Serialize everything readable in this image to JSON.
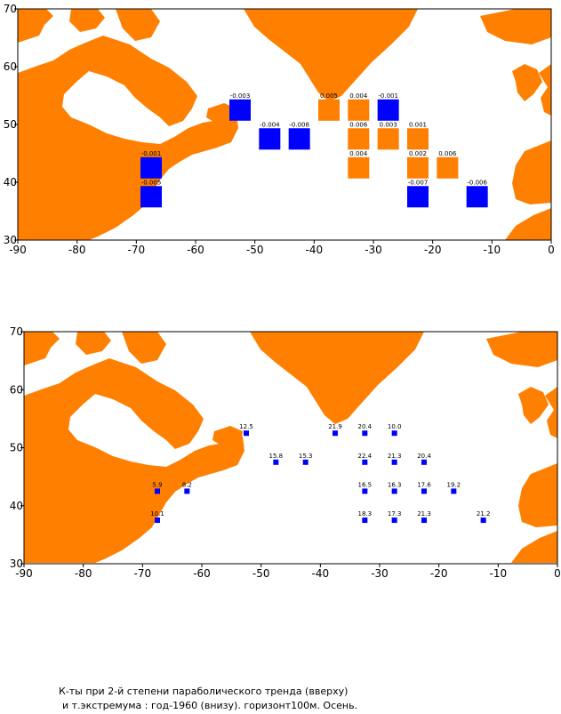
{
  "colors": {
    "land": "#ff7f00",
    "sea": "#ffffff",
    "negative": "#0000ff",
    "positive": "#ff7f00",
    "station": "#0000ff"
  },
  "caption": {
    "line1": "К-ты при 2-й степени параболического тренда (вверху)",
    "line2": "и т.экстремума : год-1960 (внизу).  горизонт100м. Осень."
  },
  "chart_data": [
    {
      "type": "map-grid",
      "xlim": [
        -90,
        0
      ],
      "ylim": [
        30,
        70
      ],
      "x_ticks": [
        "-90",
        "-80",
        "-70",
        "-60",
        "-50",
        "-40",
        "-30",
        "-20",
        "-10",
        "0"
      ],
      "y_ticks": [
        "70",
        "60",
        "50",
        "40",
        "30"
      ],
      "cells": [
        {
          "lon": -52.5,
          "lat": 52.5,
          "value": -0.003,
          "label": "-0.003"
        },
        {
          "lon": -37.5,
          "lat": 52.5,
          "value": 0.005,
          "label": "0.005"
        },
        {
          "lon": -32.5,
          "lat": 52.5,
          "value": 0.004,
          "label": "0.004"
        },
        {
          "lon": -27.5,
          "lat": 52.5,
          "value": -0.001,
          "label": "-0.001"
        },
        {
          "lon": -47.5,
          "lat": 47.5,
          "value": -0.004,
          "label": "-0.004"
        },
        {
          "lon": -42.5,
          "lat": 47.5,
          "value": -0.008,
          "label": "-0.008"
        },
        {
          "lon": -32.5,
          "lat": 47.5,
          "value": 0.006,
          "label": "0.006"
        },
        {
          "lon": -27.5,
          "lat": 47.5,
          "value": 0.003,
          "label": "0.003"
        },
        {
          "lon": -22.5,
          "lat": 47.5,
          "value": 0.001,
          "label": "0.001"
        },
        {
          "lon": -67.5,
          "lat": 42.5,
          "value": -0.001,
          "label": "-0.001"
        },
        {
          "lon": -32.5,
          "lat": 42.5,
          "value": 0.004,
          "label": "0.004"
        },
        {
          "lon": -22.5,
          "lat": 42.5,
          "value": 0.002,
          "label": "0.002"
        },
        {
          "lon": -17.5,
          "lat": 42.5,
          "value": 0.006,
          "label": "0.006"
        },
        {
          "lon": -67.5,
          "lat": 37.5,
          "value": -0.005,
          "label": "-0.005"
        },
        {
          "lon": -22.5,
          "lat": 37.5,
          "value": -0.007,
          "label": "-0.007"
        },
        {
          "lon": -12.5,
          "lat": 37.5,
          "value": -0.006,
          "label": "-0.006"
        }
      ]
    },
    {
      "type": "map-points",
      "xlim": [
        -90,
        0
      ],
      "ylim": [
        30,
        70
      ],
      "x_ticks": [
        "-90",
        "-80",
        "-70",
        "-60",
        "-50",
        "-40",
        "-30",
        "-20",
        "-10",
        "0"
      ],
      "y_ticks": [
        "70",
        "60",
        "50",
        "40",
        "30"
      ],
      "points": [
        {
          "lon": -52.5,
          "lat": 52.5,
          "label": "12.5"
        },
        {
          "lon": -37.5,
          "lat": 52.5,
          "label": "21.9"
        },
        {
          "lon": -32.5,
          "lat": 52.5,
          "label": "20.4"
        },
        {
          "lon": -27.5,
          "lat": 52.5,
          "label": "10.0"
        },
        {
          "lon": -47.5,
          "lat": 47.5,
          "label": "15.8"
        },
        {
          "lon": -42.5,
          "lat": 47.5,
          "label": "15.3"
        },
        {
          "lon": -32.5,
          "lat": 47.5,
          "label": "22.4"
        },
        {
          "lon": -27.5,
          "lat": 47.5,
          "label": "21.3"
        },
        {
          "lon": -22.5,
          "lat": 47.5,
          "label": "20.4"
        },
        {
          "lon": -67.5,
          "lat": 42.5,
          "label": "5.9"
        },
        {
          "lon": -62.5,
          "lat": 42.5,
          "label": "8.2"
        },
        {
          "lon": -32.5,
          "lat": 42.5,
          "label": "16.5"
        },
        {
          "lon": -27.5,
          "lat": 42.5,
          "label": "16.3"
        },
        {
          "lon": -22.5,
          "lat": 42.5,
          "label": "17.6"
        },
        {
          "lon": -17.5,
          "lat": 42.5,
          "label": "19.2"
        },
        {
          "lon": -67.5,
          "lat": 37.5,
          "label": "10.1"
        },
        {
          "lon": -32.5,
          "lat": 37.5,
          "label": "18.3"
        },
        {
          "lon": -27.5,
          "lat": 37.5,
          "label": "17.3"
        },
        {
          "lon": -22.5,
          "lat": 37.5,
          "label": "21.3"
        },
        {
          "lon": -12.5,
          "lat": 37.5,
          "label": "21.2"
        }
      ]
    }
  ]
}
